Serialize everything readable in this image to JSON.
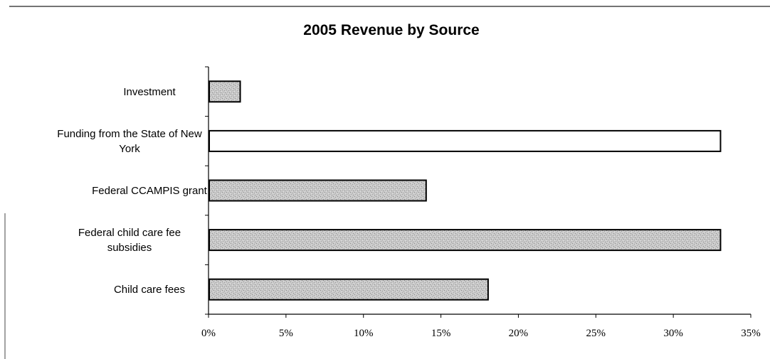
{
  "chart_data": {
    "type": "bar",
    "orientation": "horizontal",
    "title": "2005 Revenue by Source",
    "xlabel": "",
    "ylabel": "",
    "categories": [
      "Investment",
      "Funding from the State of New York",
      "Federal CCAMPIS grant",
      "Federal child care fee subsidies",
      "Child care fees"
    ],
    "category_lines": [
      [
        "Investment"
      ],
      [
        "Funding from the State of New",
        "York"
      ],
      [
        "Federal CCAMPIS grant"
      ],
      [
        "Federal child care fee",
        "subsidies"
      ],
      [
        "Child care fees"
      ]
    ],
    "values": [
      2,
      33,
      14,
      33,
      18
    ],
    "value_unit": "%",
    "xlim": [
      0,
      35
    ],
    "x_ticks": [
      0,
      5,
      10,
      15,
      20,
      25,
      30,
      35
    ],
    "x_tick_labels": [
      "0%",
      "5%",
      "10%",
      "15%",
      "20%",
      "25%",
      "30%",
      "35%"
    ],
    "grid": false,
    "legend": "none",
    "bar_fills": [
      "gray-texture",
      "white",
      "gray-texture",
      "gray-texture",
      "gray-texture"
    ],
    "colors": {
      "bar_texture_base": "#c8c8c8",
      "bar_texture_dark": "#8a8a8a",
      "bar_outline": "#000000",
      "bar_blank": "#ffffff"
    }
  }
}
